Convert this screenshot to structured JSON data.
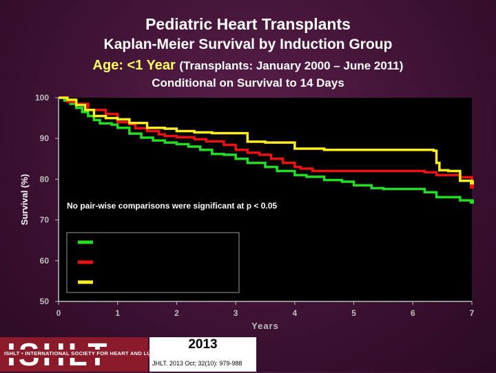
{
  "header": {
    "title": "Pediatric Heart Transplants",
    "subtitle": "Kaplan-Meier Survival by Induction Group",
    "age_label": "Age: <1 Year",
    "period_label": "(Transplants: January 2000 – June 2011)",
    "condition_label": "Conditional on Survival to 14 Days"
  },
  "footer": {
    "logo_text": "ISHLT",
    "org_name": "ISHLT • INTERNATIONAL SOCIETY FOR HEART AND LUNG TRANSPLANTATION",
    "year": "2013",
    "citation": "JHLT. 2013 Oct; 32(10): 979-988"
  },
  "colors": {
    "background": "#3e1234",
    "plot_background": "#000000",
    "axis": "#bfbfbf",
    "green": "#22dd22",
    "red": "#ee1111",
    "yellow": "#ffee22"
  },
  "chart_data": {
    "type": "line",
    "title": "",
    "xlabel": "Years",
    "ylabel": "Survival (%)",
    "xlim": [
      0,
      7
    ],
    "ylim": [
      50,
      100
    ],
    "xticks": [
      0,
      1,
      2,
      3,
      4,
      5,
      6,
      7
    ],
    "yticks": [
      50,
      60,
      70,
      80,
      90,
      100
    ],
    "grid": false,
    "annotation": "No pair-wise comparisons were significant at p < 0.05",
    "legend": {
      "placement": "lower-left",
      "entries": [
        {
          "color": "#22dd22",
          "label": ""
        },
        {
          "color": "#ee1111",
          "label": ""
        },
        {
          "color": "#ffee22",
          "label": ""
        }
      ]
    },
    "series": [
      {
        "color": "#22dd22",
        "points": [
          [
            0,
            100
          ],
          [
            0.1,
            99.3
          ],
          [
            0.2,
            98.5
          ],
          [
            0.3,
            97.5
          ],
          [
            0.4,
            96.5
          ],
          [
            0.5,
            95.5
          ],
          [
            0.6,
            94.5
          ],
          [
            0.7,
            93.7
          ],
          [
            0.9,
            93.4
          ],
          [
            1.0,
            92.6
          ],
          [
            1.2,
            91.2
          ],
          [
            1.4,
            90.2
          ],
          [
            1.6,
            89.5
          ],
          [
            1.8,
            89
          ],
          [
            2.0,
            88.6
          ],
          [
            2.2,
            88
          ],
          [
            2.4,
            87.2
          ],
          [
            2.6,
            86.2
          ],
          [
            2.8,
            86
          ],
          [
            3.0,
            85
          ],
          [
            3.2,
            84
          ],
          [
            3.5,
            83
          ],
          [
            3.7,
            82
          ],
          [
            4.0,
            81
          ],
          [
            4.2,
            80.6
          ],
          [
            4.5,
            79.8
          ],
          [
            4.8,
            79.4
          ],
          [
            5.0,
            78.5
          ],
          [
            5.3,
            77.8
          ],
          [
            5.5,
            77.6
          ],
          [
            5.8,
            77.6
          ],
          [
            6.2,
            76.8
          ],
          [
            6.4,
            75.6
          ],
          [
            6.8,
            74.8
          ],
          [
            7.0,
            74.5
          ]
        ]
      },
      {
        "color": "#ee1111",
        "points": [
          [
            0,
            100
          ],
          [
            0.15,
            99
          ],
          [
            0.3,
            98.5
          ],
          [
            0.5,
            97
          ],
          [
            0.8,
            96
          ],
          [
            1.0,
            94
          ],
          [
            1.2,
            93.5
          ],
          [
            1.3,
            92.5
          ],
          [
            1.5,
            91.8
          ],
          [
            1.7,
            91
          ],
          [
            1.8,
            90.6
          ],
          [
            2.0,
            90.3
          ],
          [
            2.3,
            89.8
          ],
          [
            2.5,
            89.3
          ],
          [
            2.8,
            88.4
          ],
          [
            3.0,
            87.2
          ],
          [
            3.2,
            86.5
          ],
          [
            3.4,
            86
          ],
          [
            3.6,
            85
          ],
          [
            3.8,
            84
          ],
          [
            4.0,
            83
          ],
          [
            4.1,
            82.6
          ],
          [
            4.3,
            82
          ],
          [
            4.8,
            82
          ],
          [
            5.0,
            82
          ],
          [
            5.5,
            82
          ],
          [
            5.8,
            82
          ],
          [
            6.2,
            81.7
          ],
          [
            6.4,
            81
          ],
          [
            6.8,
            80.5
          ],
          [
            7.0,
            78.2
          ]
        ]
      },
      {
        "color": "#ffee22",
        "points": [
          [
            0,
            100
          ],
          [
            0.15,
            99.5
          ],
          [
            0.3,
            98.2
          ],
          [
            0.45,
            97
          ],
          [
            0.6,
            95.5
          ],
          [
            0.8,
            95
          ],
          [
            1.0,
            94.7
          ],
          [
            1.2,
            93.8
          ],
          [
            1.5,
            92.6
          ],
          [
            1.8,
            92.4
          ],
          [
            2.0,
            91.8
          ],
          [
            2.3,
            91.5
          ],
          [
            2.6,
            91.3
          ],
          [
            3.0,
            91.3
          ],
          [
            3.2,
            89.2
          ],
          [
            3.5,
            89
          ],
          [
            4.0,
            87.5
          ],
          [
            4.5,
            87.2
          ],
          [
            5.0,
            87.2
          ],
          [
            5.5,
            87.2
          ],
          [
            6.0,
            87.2
          ],
          [
            6.35,
            87
          ],
          [
            6.4,
            84
          ],
          [
            6.45,
            82.2
          ],
          [
            6.6,
            82
          ],
          [
            6.8,
            79.6
          ],
          [
            7.0,
            79.2
          ]
        ]
      }
    ]
  }
}
